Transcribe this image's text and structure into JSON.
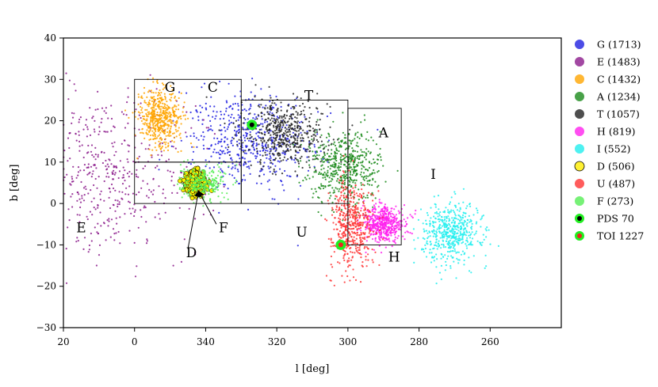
{
  "chart_data": {
    "type": "scatter",
    "title": "",
    "xlabel": "l [deg]",
    "ylabel": "b [deg]",
    "xlim": [
      20,
      260
    ],
    "xaxis_note": "Galactic longitude decreasing left to right; ticks wrap at 360 -> 0",
    "x_ticks": [
      {
        "value": 20,
        "label": "20"
      },
      {
        "value": 0,
        "label": "0"
      },
      {
        "value": 340,
        "label": "340"
      },
      {
        "value": 320,
        "label": "320"
      },
      {
        "value": 300,
        "label": "300"
      },
      {
        "value": 280,
        "label": "280"
      },
      {
        "value": 260,
        "label": "260"
      }
    ],
    "ylim": [
      -30,
      40
    ],
    "y_ticks": [
      {
        "value": 40,
        "label": "40"
      },
      {
        "value": 30,
        "label": "30"
      },
      {
        "value": 20,
        "label": "20"
      },
      {
        "value": 10,
        "label": "10"
      },
      {
        "value": 0,
        "label": "0"
      },
      {
        "value": -10,
        "label": "−10"
      },
      {
        "value": -20,
        "label": "−20"
      },
      {
        "value": -30,
        "label": "−30"
      }
    ],
    "grid": false,
    "legend_position": "right-outside",
    "series": [
      {
        "name": "G (1713)",
        "color": "#1f1fe0",
        "count": 1713,
        "center_l": 328,
        "center_b": 15,
        "spread_l": 9,
        "spread_b": 6
      },
      {
        "name": "E (1483)",
        "color": "#8b1a8b",
        "count": 1483,
        "center_l": 8,
        "center_b": 7,
        "spread_l": 12,
        "spread_b": 10
      },
      {
        "name": "C (1432)",
        "color": "#ffa500",
        "count": 1432,
        "center_l": 353,
        "center_b": 21,
        "spread_l": 3,
        "spread_b": 3.5
      },
      {
        "name": "A (1234)",
        "color": "#1a8a1a",
        "count": 1234,
        "center_l": 301,
        "center_b": 9,
        "spread_l": 5,
        "spread_b": 4.5
      },
      {
        "name": "T (1057)",
        "color": "#222222",
        "count": 1057,
        "center_l": 318,
        "center_b": 17,
        "spread_l": 6,
        "spread_b": 4
      },
      {
        "name": "H (819)",
        "color": "#ff22ee",
        "count": 819,
        "center_l": 290,
        "center_b": -5,
        "spread_l": 3,
        "spread_b": 2
      },
      {
        "name": "I (552)",
        "color": "#22eeee",
        "count": 552,
        "center_l": 271,
        "center_b": -7,
        "spread_l": 4,
        "spread_b": 3.5
      },
      {
        "name": "D (506)",
        "color": "#ffee00",
        "count": 506,
        "center_l": 343,
        "center_b": 5,
        "spread_l": 1.3,
        "spread_b": 1.3
      },
      {
        "name": "U (487)",
        "color": "#ff3333",
        "count": 487,
        "center_l": 299,
        "center_b": -5,
        "spread_l": 3,
        "spread_b": 5
      },
      {
        "name": "F (273)",
        "color": "#55ee55",
        "count": 273,
        "center_l": 341,
        "center_b": 5,
        "spread_l": 3,
        "spread_b": 2
      }
    ],
    "markers": [
      {
        "name": "PDS 70",
        "l": 327,
        "b": 19,
        "edge": "#22ee22",
        "face": "#000000"
      },
      {
        "name": "TOI 1227",
        "l": 302,
        "b": -10,
        "edge": "#22ee22",
        "face": "#ee2222"
      }
    ],
    "boxes": [
      {
        "id": "box-C",
        "l_left": 0,
        "l_right": 330,
        "b_bottom": 10,
        "b_top": 30
      },
      {
        "id": "box-G",
        "l_left": 330,
        "l_right": 300,
        "b_bottom": 0,
        "b_top": 25
      },
      {
        "id": "box-A",
        "l_left": 300,
        "l_right": 285,
        "b_bottom": -10,
        "b_top": 23
      },
      {
        "id": "box-CG",
        "l_left": 0,
        "l_right": 330,
        "b_bottom": 0,
        "b_top": 10
      }
    ],
    "annotations": [
      {
        "text": "C",
        "l": 338,
        "b": 27
      },
      {
        "text": "G",
        "l": 350,
        "b": 27
      },
      {
        "text": "T",
        "l": 311,
        "b": 25
      },
      {
        "text": "A",
        "l": 290,
        "b": 16
      },
      {
        "text": "I",
        "l": 276,
        "b": 6
      },
      {
        "text": "E",
        "l": 15,
        "b": -7
      },
      {
        "text": "F",
        "l": 335,
        "b": -7
      },
      {
        "text": "U",
        "l": 313,
        "b": -8
      },
      {
        "text": "H",
        "l": 287,
        "b": -14
      },
      {
        "text": "D",
        "l": 344,
        "b": -13
      }
    ],
    "arrows": [
      {
        "label": "D",
        "from_l": 345,
        "from_b": -11,
        "to_l": 342,
        "to_b": 3
      },
      {
        "label": "F",
        "from_l": 337,
        "from_b": -5,
        "to_l": 342,
        "to_b": 3
      }
    ]
  }
}
